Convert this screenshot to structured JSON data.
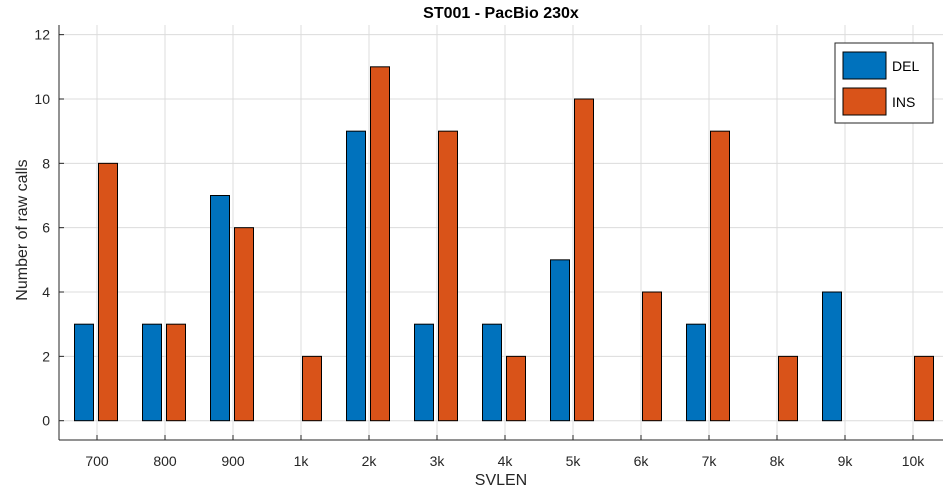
{
  "chart_data": {
    "type": "bar",
    "title": "ST001 - PacBio 230x",
    "xlabel": "SVLEN",
    "ylabel": "Number of raw calls",
    "categories": [
      "700",
      "800",
      "900",
      "1k",
      "2k",
      "3k",
      "4k",
      "5k",
      "6k",
      "7k",
      "8k",
      "9k",
      "10k"
    ],
    "series": [
      {
        "name": "DEL",
        "color": "#0072BD",
        "values": [
          3,
          3,
          7,
          0,
          9,
          3,
          3,
          5,
          0,
          3,
          0,
          4,
          0
        ]
      },
      {
        "name": "INS",
        "color": "#D95319",
        "values": [
          8,
          3,
          6,
          2,
          11,
          9,
          2,
          10,
          4,
          9,
          2,
          0,
          2
        ]
      }
    ],
    "ylim": [
      -0.6,
      12.3
    ],
    "yticks": [
      0,
      2,
      4,
      6,
      8,
      10,
      12
    ],
    "grid": true,
    "legend_position": "top-right"
  }
}
